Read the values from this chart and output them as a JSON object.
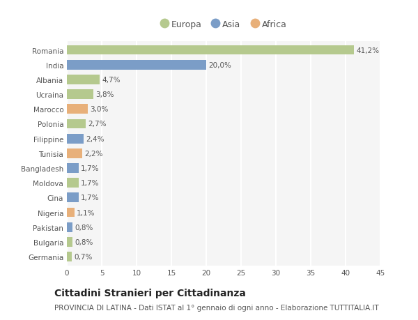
{
  "countries": [
    "Romania",
    "India",
    "Albania",
    "Ucraina",
    "Marocco",
    "Polonia",
    "Filippine",
    "Tunisia",
    "Bangladesh",
    "Moldova",
    "Cina",
    "Nigeria",
    "Pakistan",
    "Bulgaria",
    "Germania"
  ],
  "values": [
    41.2,
    20.0,
    4.7,
    3.8,
    3.0,
    2.7,
    2.4,
    2.2,
    1.7,
    1.7,
    1.7,
    1.1,
    0.8,
    0.8,
    0.7
  ],
  "labels": [
    "41,2%",
    "20,0%",
    "4,7%",
    "3,8%",
    "3,0%",
    "2,7%",
    "2,4%",
    "2,2%",
    "1,7%",
    "1,7%",
    "1,7%",
    "1,1%",
    "0,8%",
    "0,8%",
    "0,7%"
  ],
  "continents": [
    "Europa",
    "Asia",
    "Europa",
    "Europa",
    "Africa",
    "Europa",
    "Asia",
    "Africa",
    "Asia",
    "Europa",
    "Asia",
    "Africa",
    "Asia",
    "Europa",
    "Europa"
  ],
  "colors": {
    "Europa": "#b5c98e",
    "Asia": "#7b9dc7",
    "Africa": "#e8b07a"
  },
  "xlim": [
    0,
    45
  ],
  "xticks": [
    0,
    5,
    10,
    15,
    20,
    25,
    30,
    35,
    40,
    45
  ],
  "title": "Cittadini Stranieri per Cittadinanza",
  "subtitle": "PROVINCIA DI LATINA - Dati ISTAT al 1° gennaio di ogni anno - Elaborazione TUTTITALIA.IT",
  "background_color": "#ffffff",
  "plot_bg_color": "#f5f5f5",
  "grid_color": "#ffffff",
  "bar_height": 0.65,
  "title_fontsize": 10,
  "subtitle_fontsize": 7.5,
  "label_fontsize": 7.5,
  "tick_fontsize": 7.5,
  "legend_fontsize": 9
}
